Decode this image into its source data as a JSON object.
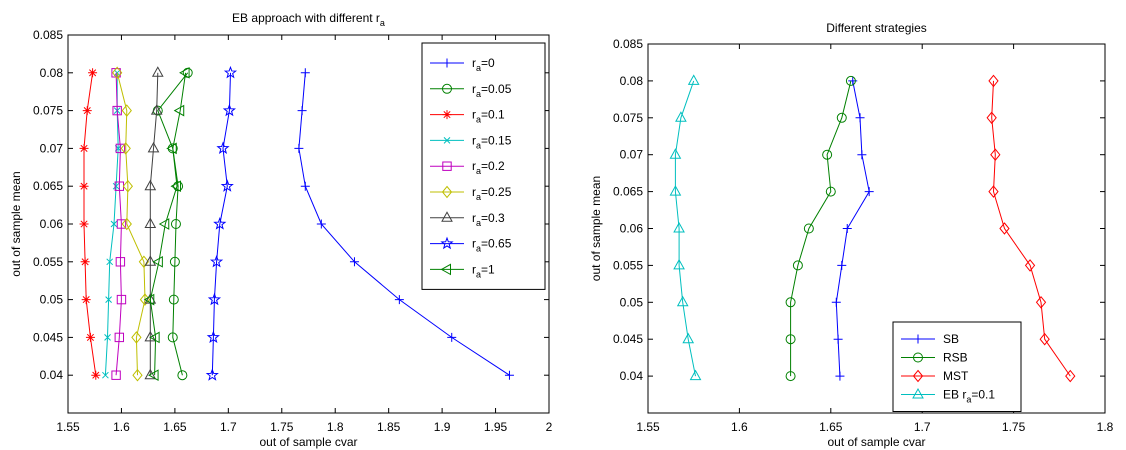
{
  "chart_data": [
    {
      "type": "line",
      "title": "EB approach with different r_a",
      "title_main": "EB approach with different r",
      "title_sub": "a",
      "xlabel": "out of sample cvar",
      "ylabel": "out of sample mean",
      "xlim": [
        1.55,
        2.0
      ],
      "ylim": [
        0.035,
        0.085
      ],
      "xticks": [
        1.55,
        1.6,
        1.65,
        1.7,
        1.75,
        1.8,
        1.85,
        1.9,
        1.95,
        2.0
      ],
      "xtick_labels": [
        "1.55",
        "1.6",
        "1.65",
        "1.7",
        "1.75",
        "1.8",
        "1.85",
        "1.9",
        "1.95",
        "2"
      ],
      "yticks": [
        0.04,
        0.045,
        0.05,
        0.055,
        0.06,
        0.065,
        0.07,
        0.075,
        0.08,
        0.085
      ],
      "ytick_labels": [
        "0.04",
        "0.045",
        "0.05",
        "0.055",
        "0.06",
        "0.065",
        "0.07",
        "0.075",
        "0.08",
        "0.085"
      ],
      "grid": false,
      "legend_position": "top-right",
      "y": [
        0.04,
        0.045,
        0.05,
        0.055,
        0.06,
        0.065,
        0.07,
        0.075,
        0.08
      ],
      "series": [
        {
          "name": "r_a=0",
          "label_main": "r",
          "label_sub": "a",
          "label_rest": "=0",
          "color": "#0000ff",
          "marker": "plus",
          "x": [
            1.963,
            1.909,
            1.86,
            1.818,
            1.787,
            1.772,
            1.766,
            1.769,
            1.772
          ]
        },
        {
          "name": "r_a=0.05",
          "label_main": "r",
          "label_sub": "a",
          "label_rest": "=0.05",
          "color": "#008000",
          "marker": "circle",
          "x": [
            1.657,
            1.648,
            1.649,
            1.65,
            1.651,
            1.653,
            1.648,
            1.634,
            1.662
          ]
        },
        {
          "name": "r_a=0.1",
          "label_main": "r",
          "label_sub": "a",
          "label_rest": "=0.1",
          "color": "#ff0000",
          "marker": "star",
          "x": [
            1.576,
            1.571,
            1.567,
            1.566,
            1.565,
            1.565,
            1.565,
            1.568,
            1.573
          ]
        },
        {
          "name": "r_a=0.15",
          "label_main": "r",
          "label_sub": "a",
          "label_rest": "=0.15",
          "color": "#00bfbf",
          "marker": "x",
          "x": [
            1.585,
            1.587,
            1.588,
            1.589,
            1.593,
            1.595,
            1.597,
            1.596,
            1.596
          ]
        },
        {
          "name": "r_a=0.2",
          "label_main": "r",
          "label_sub": "a",
          "label_rest": "=0.2",
          "color": "#bf00bf",
          "marker": "square",
          "x": [
            1.595,
            1.598,
            1.6,
            1.599,
            1.6,
            1.598,
            1.599,
            1.596,
            1.595
          ]
        },
        {
          "name": "r_a=0.25",
          "label_main": "r",
          "label_sub": "a",
          "label_rest": "=0.25",
          "color": "#bfbf00",
          "marker": "diamond",
          "x": [
            1.615,
            1.614,
            1.622,
            1.621,
            1.605,
            1.606,
            1.604,
            1.605,
            1.596
          ]
        },
        {
          "name": "r_a=0.3",
          "label_main": "r",
          "label_sub": "a",
          "label_rest": "=0.3",
          "color": "#404040",
          "marker": "triangle-up",
          "x": [
            1.627,
            1.627,
            1.627,
            1.627,
            1.627,
            1.627,
            1.63,
            1.633,
            1.634
          ]
        },
        {
          "name": "r_a=0.65",
          "label_main": "r",
          "label_sub": "a",
          "label_rest": "=0.65",
          "color": "#0000ff",
          "marker": "pentagram",
          "x": [
            1.685,
            1.686,
            1.687,
            1.689,
            1.692,
            1.699,
            1.695,
            1.701,
            1.702
          ]
        },
        {
          "name": "r_a=1",
          "label_main": "r",
          "label_sub": "a",
          "label_rest": "=1",
          "color": "#008000",
          "marker": "triangle-left",
          "x": [
            1.631,
            1.632,
            1.627,
            1.635,
            1.641,
            1.652,
            1.648,
            1.655,
            1.66
          ]
        }
      ]
    },
    {
      "type": "line",
      "title": "Different strategies",
      "xlabel": "out of sample cvar",
      "ylabel": "out of sample mean",
      "xlim": [
        1.55,
        1.8
      ],
      "ylim": [
        0.035,
        0.085
      ],
      "xticks": [
        1.55,
        1.6,
        1.65,
        1.7,
        1.75,
        1.8
      ],
      "xtick_labels": [
        "1.55",
        "1.6",
        "1.65",
        "1.7",
        "1.75",
        "1.8"
      ],
      "yticks": [
        0.04,
        0.045,
        0.05,
        0.055,
        0.06,
        0.065,
        0.07,
        0.075,
        0.08,
        0.085
      ],
      "ytick_labels": [
        "0.04",
        "0.045",
        "0.05",
        "0.055",
        "0.06",
        "0.065",
        "0.07",
        "0.075",
        "0.08",
        "0.085"
      ],
      "grid": false,
      "legend_position": "bottom-right",
      "y": [
        0.04,
        0.045,
        0.05,
        0.055,
        0.06,
        0.065,
        0.07,
        0.075,
        0.08
      ],
      "series": [
        {
          "name": "SB",
          "label_main": "SB",
          "label_sub": "",
          "label_rest": "",
          "color": "#0000ff",
          "marker": "plus",
          "x": [
            1.655,
            1.654,
            1.653,
            1.656,
            1.659,
            1.671,
            1.667,
            1.666,
            1.662
          ]
        },
        {
          "name": "RSB",
          "label_main": "RSB",
          "label_sub": "",
          "label_rest": "",
          "color": "#008000",
          "marker": "circle",
          "x": [
            1.628,
            1.628,
            1.628,
            1.632,
            1.638,
            1.65,
            1.648,
            1.656,
            1.661
          ]
        },
        {
          "name": "MST",
          "label_main": "MST",
          "label_sub": "",
          "label_rest": "",
          "color": "#ff0000",
          "marker": "diamond",
          "x": [
            1.781,
            1.767,
            1.765,
            1.759,
            1.745,
            1.739,
            1.74,
            1.738,
            1.739
          ]
        },
        {
          "name": "EB r_a=0.1",
          "label_main": "EB r",
          "label_sub": "a",
          "label_rest": "=0.1",
          "color": "#00bfbf",
          "marker": "triangle-up",
          "x": [
            1.576,
            1.572,
            1.569,
            1.567,
            1.567,
            1.565,
            1.565,
            1.568,
            1.575
          ]
        }
      ]
    }
  ]
}
